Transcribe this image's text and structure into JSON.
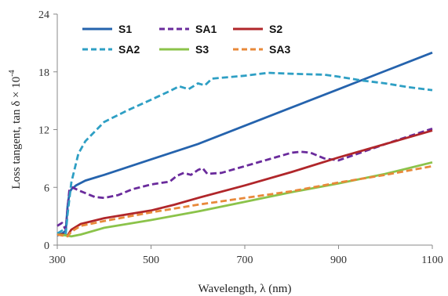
{
  "chart_data": {
    "type": "line",
    "xlabel": "Wavelength, λ (nm)",
    "ylabel": "Loss tangent, tan δ × 10",
    "ylabel_exponent": "-4",
    "xlim": [
      300,
      1100
    ],
    "ylim": [
      0,
      24
    ],
    "xticks": [
      "300",
      "500",
      "700",
      "900",
      "1100"
    ],
    "yticks": [
      "0",
      "6",
      "12",
      "18",
      "24"
    ],
    "x_tick_values": [
      300,
      500,
      700,
      900,
      1100
    ],
    "y_tick_values": [
      0,
      6,
      12,
      18,
      24
    ],
    "grid": false,
    "legend_placement": "top-left",
    "series": [
      {
        "name": "S1",
        "color": "#2563ad",
        "dash": "solid",
        "points": [
          [
            300,
            1.0
          ],
          [
            310,
            1.2
          ],
          [
            318,
            1.5
          ],
          [
            322,
            4.0
          ],
          [
            326,
            5.4
          ],
          [
            330,
            5.8
          ],
          [
            340,
            6.2
          ],
          [
            360,
            6.7
          ],
          [
            400,
            7.3
          ],
          [
            500,
            8.9
          ],
          [
            600,
            10.5
          ],
          [
            700,
            12.4
          ],
          [
            800,
            14.3
          ],
          [
            900,
            16.2
          ],
          [
            1000,
            18.1
          ],
          [
            1100,
            20.0
          ]
        ]
      },
      {
        "name": "SA1",
        "color": "#6a2b9c",
        "dash": "dashed",
        "points": [
          [
            300,
            2.0
          ],
          [
            310,
            2.3
          ],
          [
            318,
            1.6
          ],
          [
            322,
            3.8
          ],
          [
            326,
            5.8
          ],
          [
            332,
            6.0
          ],
          [
            350,
            5.6
          ],
          [
            380,
            5.0
          ],
          [
            400,
            4.9
          ],
          [
            430,
            5.2
          ],
          [
            460,
            5.8
          ],
          [
            500,
            6.3
          ],
          [
            540,
            6.6
          ],
          [
            555,
            7.2
          ],
          [
            570,
            7.5
          ],
          [
            585,
            7.3
          ],
          [
            600,
            7.8
          ],
          [
            610,
            8.0
          ],
          [
            620,
            7.4
          ],
          [
            650,
            7.5
          ],
          [
            700,
            8.2
          ],
          [
            750,
            8.9
          ],
          [
            800,
            9.6
          ],
          [
            820,
            9.7
          ],
          [
            840,
            9.6
          ],
          [
            870,
            9.0
          ],
          [
            900,
            8.8
          ],
          [
            1000,
            10.5
          ],
          [
            1100,
            12.1
          ]
        ]
      },
      {
        "name": "S2",
        "color": "#b0262a",
        "dash": "solid",
        "points": [
          [
            300,
            1.2
          ],
          [
            315,
            1.1
          ],
          [
            322,
            1.0
          ],
          [
            330,
            1.6
          ],
          [
            350,
            2.2
          ],
          [
            400,
            2.8
          ],
          [
            500,
            3.6
          ],
          [
            550,
            4.2
          ],
          [
            600,
            4.9
          ],
          [
            700,
            6.2
          ],
          [
            800,
            7.6
          ],
          [
            900,
            9.1
          ],
          [
            1000,
            10.5
          ],
          [
            1100,
            11.9
          ]
        ]
      },
      {
        "name": "SA2",
        "color": "#2e9fc4",
        "dash": "dashed",
        "points": [
          [
            300,
            1.2
          ],
          [
            310,
            1.5
          ],
          [
            318,
            1.2
          ],
          [
            322,
            3.2
          ],
          [
            330,
            6.5
          ],
          [
            345,
            9.5
          ],
          [
            360,
            10.8
          ],
          [
            380,
            11.8
          ],
          [
            400,
            12.8
          ],
          [
            450,
            14.0
          ],
          [
            500,
            15.1
          ],
          [
            540,
            16.0
          ],
          [
            560,
            16.5
          ],
          [
            580,
            16.2
          ],
          [
            600,
            16.8
          ],
          [
            615,
            16.6
          ],
          [
            630,
            17.3
          ],
          [
            700,
            17.6
          ],
          [
            750,
            17.9
          ],
          [
            800,
            17.8
          ],
          [
            870,
            17.7
          ],
          [
            900,
            17.5
          ],
          [
            950,
            17.1
          ],
          [
            1000,
            16.8
          ],
          [
            1050,
            16.4
          ],
          [
            1100,
            16.1
          ]
        ]
      },
      {
        "name": "S3",
        "color": "#8bc34a",
        "dash": "solid",
        "points": [
          [
            300,
            1.1
          ],
          [
            320,
            1.0
          ],
          [
            330,
            0.9
          ],
          [
            350,
            1.1
          ],
          [
            400,
            1.8
          ],
          [
            500,
            2.6
          ],
          [
            600,
            3.5
          ],
          [
            700,
            4.5
          ],
          [
            800,
            5.5
          ],
          [
            900,
            6.4
          ],
          [
            1000,
            7.4
          ],
          [
            1100,
            8.6
          ]
        ]
      },
      {
        "name": "SA3",
        "color": "#e8893a",
        "dash": "dashed",
        "points": [
          [
            300,
            1.1
          ],
          [
            310,
            1.0
          ],
          [
            322,
            0.9
          ],
          [
            330,
            1.4
          ],
          [
            350,
            2.0
          ],
          [
            400,
            2.5
          ],
          [
            500,
            3.4
          ],
          [
            600,
            4.2
          ],
          [
            700,
            4.9
          ],
          [
            800,
            5.6
          ],
          [
            900,
            6.5
          ],
          [
            1000,
            7.3
          ],
          [
            1100,
            8.2
          ]
        ]
      }
    ]
  }
}
